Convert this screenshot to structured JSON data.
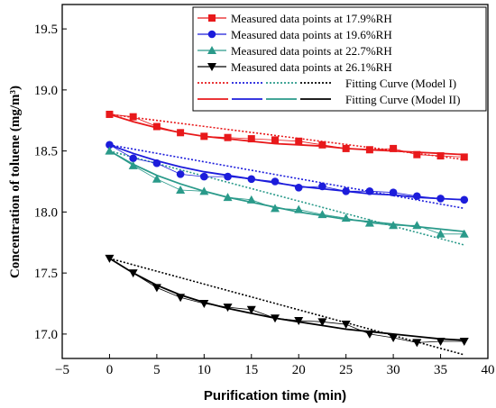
{
  "chart_data": {
    "type": "line",
    "xlabel": "Purification time (min)",
    "ylabel": "Concentration of toluene (mg/m³)",
    "xlim": [
      -5,
      40
    ],
    "ylim": [
      16.8,
      19.7
    ],
    "xticks": [
      -5,
      0,
      5,
      10,
      15,
      20,
      25,
      30,
      35,
      40
    ],
    "yticks": [
      17.0,
      17.5,
      18.0,
      18.5,
      19.0,
      19.5
    ],
    "xtick_labels": [
      "−5",
      "0",
      "5",
      "10",
      "15",
      "20",
      "25",
      "30",
      "35",
      "40"
    ],
    "ytick_labels": [
      "17.0",
      "17.5",
      "18.0",
      "18.5",
      "19.0",
      "19.5"
    ],
    "grid": false,
    "legend_position": "top-right",
    "fit_legend": [
      {
        "label": "Fitting Curve (Model I)",
        "style": "dotted"
      },
      {
        "label": "Fitting Curve (Model II)",
        "style": "solid"
      }
    ],
    "series": [
      {
        "name": "Measured data points at 17.9%RH",
        "color": "#e8191b",
        "marker": "square",
        "x": [
          0,
          2.5,
          5,
          7.5,
          10,
          12.5,
          15,
          17.5,
          20,
          22.5,
          25,
          27.5,
          30,
          32.5,
          35,
          37.5
        ],
        "y": [
          18.8,
          18.78,
          18.7,
          18.65,
          18.62,
          18.61,
          18.6,
          18.59,
          18.58,
          18.55,
          18.52,
          18.51,
          18.52,
          18.47,
          18.46,
          18.45
        ],
        "model1": [
          18.8,
          18.43
        ],
        "model2": [
          18.8,
          18.74,
          18.69,
          18.65,
          18.62,
          18.6,
          18.58,
          18.56,
          18.55,
          18.54,
          18.52,
          18.51,
          18.5,
          18.49,
          18.48,
          18.47
        ]
      },
      {
        "name": "Measured data points at 19.6%RH",
        "color": "#1c1cdb",
        "marker": "circle",
        "x": [
          0,
          2.5,
          5,
          7.5,
          10,
          12.5,
          15,
          17.5,
          20,
          22.5,
          25,
          27.5,
          30,
          32.5,
          35,
          37.5
        ],
        "y": [
          18.55,
          18.44,
          18.4,
          18.31,
          18.29,
          18.29,
          18.27,
          18.25,
          18.2,
          18.21,
          18.17,
          18.17,
          18.16,
          18.13,
          18.11,
          18.1
        ],
        "model1": [
          18.55,
          18.03
        ],
        "model2": [
          18.55,
          18.48,
          18.42,
          18.37,
          18.33,
          18.3,
          18.27,
          18.24,
          18.21,
          18.19,
          18.17,
          18.15,
          18.14,
          18.12,
          18.11,
          18.1
        ]
      },
      {
        "name": "Measured data points at 22.7%RH",
        "color": "#2a9a8a",
        "marker": "triangle-up",
        "x": [
          0,
          2.5,
          5,
          7.5,
          10,
          12.5,
          15,
          17.5,
          20,
          22.5,
          25,
          27.5,
          30,
          32.5,
          35,
          37.5
        ],
        "y": [
          18.5,
          18.38,
          18.27,
          18.18,
          18.17,
          18.12,
          18.1,
          18.03,
          18.02,
          17.98,
          17.95,
          17.91,
          17.89,
          17.89,
          17.82,
          17.82
        ],
        "model1": [
          18.5,
          17.73
        ],
        "model2": [
          18.5,
          18.39,
          18.3,
          18.23,
          18.17,
          18.12,
          18.08,
          18.04,
          18.0,
          17.97,
          17.94,
          17.92,
          17.9,
          17.88,
          17.86,
          17.84
        ]
      },
      {
        "name": "Measured data points at 26.1%RH",
        "color": "#000000",
        "marker": "triangle-down",
        "x": [
          0,
          2.5,
          5,
          7.5,
          10,
          12.5,
          15,
          17.5,
          20,
          22.5,
          25,
          27.5,
          30,
          32.5,
          35,
          37.5
        ],
        "y": [
          17.62,
          17.5,
          17.38,
          17.3,
          17.25,
          17.22,
          17.2,
          17.13,
          17.11,
          17.1,
          17.08,
          17.0,
          16.97,
          16.93,
          16.94,
          16.94
        ],
        "model1": [
          17.62,
          16.83
        ],
        "model2": [
          17.62,
          17.5,
          17.4,
          17.32,
          17.26,
          17.21,
          17.17,
          17.13,
          17.1,
          17.07,
          17.04,
          17.02,
          17.0,
          16.98,
          16.96,
          16.95
        ]
      }
    ]
  }
}
